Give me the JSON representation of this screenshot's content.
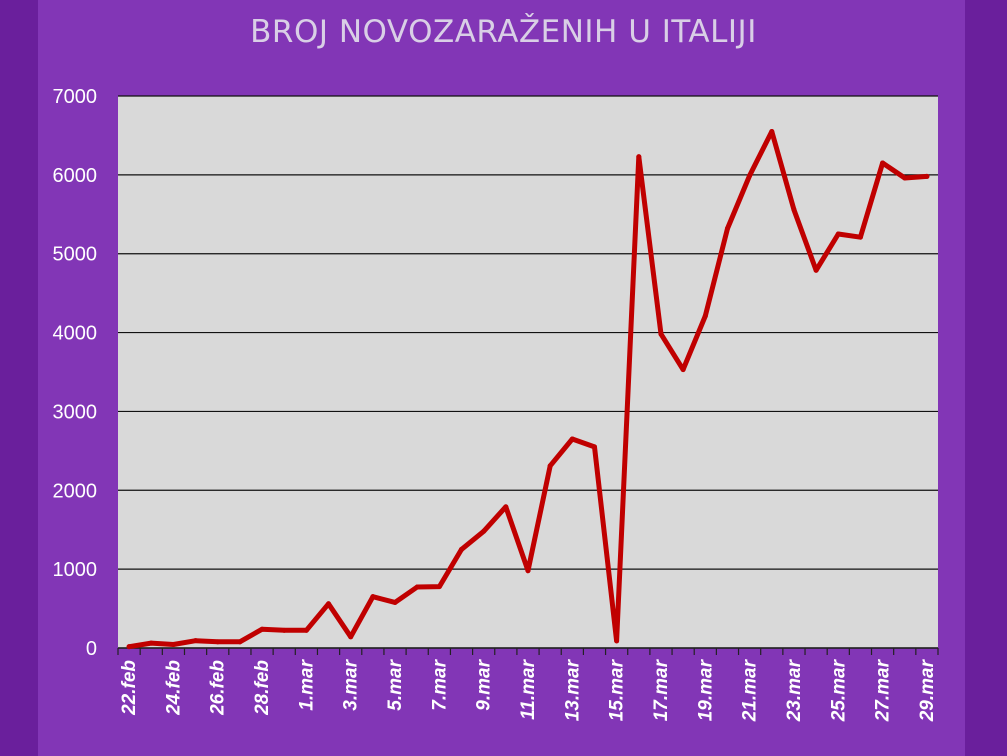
{
  "chart_data": {
    "type": "line",
    "title": "BROJ NOVOZARAŽENIH U ITALIJI",
    "xlabel": "",
    "ylabel": "",
    "ylim": [
      0,
      7000
    ],
    "yticks": [
      0,
      1000,
      2000,
      3000,
      4000,
      5000,
      6000,
      7000
    ],
    "grid": true,
    "legend": "none",
    "x": [
      "22.feb",
      "23.feb",
      "24.feb",
      "25.feb",
      "26.feb",
      "27.feb",
      "28.feb",
      "29.feb",
      "1.mar",
      "2.mar",
      "3.mar",
      "4.mar",
      "5.mar",
      "6.mar",
      "7.mar",
      "8.mar",
      "9.mar",
      "10.mar",
      "11.mar",
      "12.mar",
      "13.mar",
      "14.mar",
      "15.mar",
      "16.mar",
      "17.mar",
      "18.mar",
      "19.mar",
      "20.mar",
      "21.mar",
      "22.mar",
      "23.mar",
      "24.mar",
      "25.mar",
      "26.mar",
      "27.mar",
      "28.mar",
      "29.mar"
    ],
    "x_tick_labels": [
      "22.feb",
      "24.feb",
      "26.feb",
      "28.feb",
      "1.mar",
      "3.mar",
      "5.mar",
      "7.mar",
      "9.mar",
      "11.mar",
      "13.mar",
      "15.mar",
      "17.mar",
      "19.mar",
      "21.mar",
      "23.mar",
      "25.mar",
      "27.mar",
      "29.mar"
    ],
    "series": [
      {
        "values": [
          17,
          62,
          45,
          93,
          78,
          78,
          238,
          224,
          224,
          561,
          142,
          651,
          578,
          774,
          778,
          1250,
          1480,
          1790,
          980,
          2310,
          2650,
          2550,
          90,
          6230,
          3980,
          3530,
          4210,
          5320,
          5990,
          6550,
          5560,
          4790,
          5250,
          5210,
          6150,
          5960,
          5980
        ]
      }
    ],
    "colors": {
      "line": "#c00000",
      "plot_bg": "#d9d9d9",
      "gridline": "#111111",
      "tick_text": "#ffffff",
      "title_text": "#d9cfe6"
    }
  }
}
